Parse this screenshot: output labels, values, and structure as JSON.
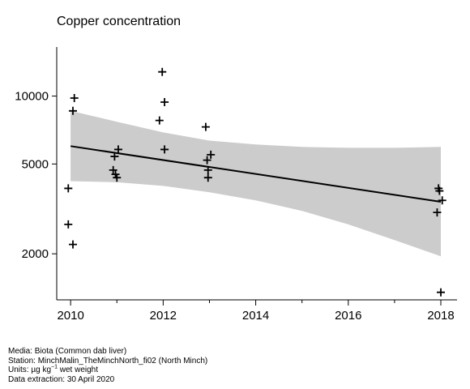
{
  "chart_data": {
    "type": "scatter",
    "title": "Copper concentration",
    "xlabel": "",
    "ylabel": "",
    "y_scale": "log",
    "xlim": [
      2009.7,
      2018.35
    ],
    "ylim": [
      1250,
      16500
    ],
    "x_ticks": [
      2010,
      2012,
      2014,
      2016,
      2018
    ],
    "x_tick_labels": [
      "2010",
      "2012",
      "2014",
      "2016",
      "2018"
    ],
    "x_minor_ticks": [
      2011,
      2013,
      2015,
      2017
    ],
    "y_ticks": [
      2000,
      5000,
      10000
    ],
    "y_tick_labels": [
      "2000",
      "5000",
      "10000"
    ],
    "grid": false,
    "legend": "none",
    "points": [
      {
        "x": 2009.95,
        "y": 3900
      },
      {
        "x": 2009.95,
        "y": 2700
      },
      {
        "x": 2010.05,
        "y": 2200
      },
      {
        "x": 2010.05,
        "y": 8600
      },
      {
        "x": 2010.08,
        "y": 9800
      },
      {
        "x": 2010.92,
        "y": 4700
      },
      {
        "x": 2010.95,
        "y": 5400
      },
      {
        "x": 2010.97,
        "y": 4500
      },
      {
        "x": 2011.0,
        "y": 4350
      },
      {
        "x": 2011.03,
        "y": 5800
      },
      {
        "x": 2011.92,
        "y": 7800
      },
      {
        "x": 2011.98,
        "y": 12800
      },
      {
        "x": 2012.03,
        "y": 9400
      },
      {
        "x": 2012.03,
        "y": 5800
      },
      {
        "x": 2012.92,
        "y": 7300
      },
      {
        "x": 2012.95,
        "y": 5200
      },
      {
        "x": 2012.97,
        "y": 4700
      },
      {
        "x": 2012.97,
        "y": 4350
      },
      {
        "x": 2013.03,
        "y": 5500
      },
      {
        "x": 2017.92,
        "y": 3050
      },
      {
        "x": 2017.95,
        "y": 3900
      },
      {
        "x": 2017.97,
        "y": 3800
      },
      {
        "x": 2018.0,
        "y": 1350
      },
      {
        "x": 2018.03,
        "y": 3450
      }
    ],
    "trend_line": {
      "x": [
        2010,
        2018
      ],
      "y": [
        6000,
        3400
      ]
    },
    "confidence_band": {
      "x": [
        2010,
        2011,
        2012,
        2013,
        2014,
        2015,
        2016,
        2017,
        2018
      ],
      "upper": [
        8600,
        7700,
        6900,
        6350,
        6100,
        5950,
        5900,
        5900,
        5950
      ],
      "lower": [
        4200,
        4150,
        4000,
        3750,
        3450,
        3100,
        2700,
        2300,
        1950
      ]
    },
    "colors": {
      "points": "#000000",
      "trend": "#000000",
      "band": "#cccccc",
      "axis": "#000000"
    }
  },
  "caption": {
    "media": "Media: Biota (Common dab liver)",
    "station": "Station: MinchMalin_TheMinchNorth_fi02 (North Minch)",
    "units_prefix": "Units:  µg kg",
    "units_exp": "−1",
    "units_suffix": " wet weight",
    "extraction": "Data extraction: 30 April 2020"
  }
}
